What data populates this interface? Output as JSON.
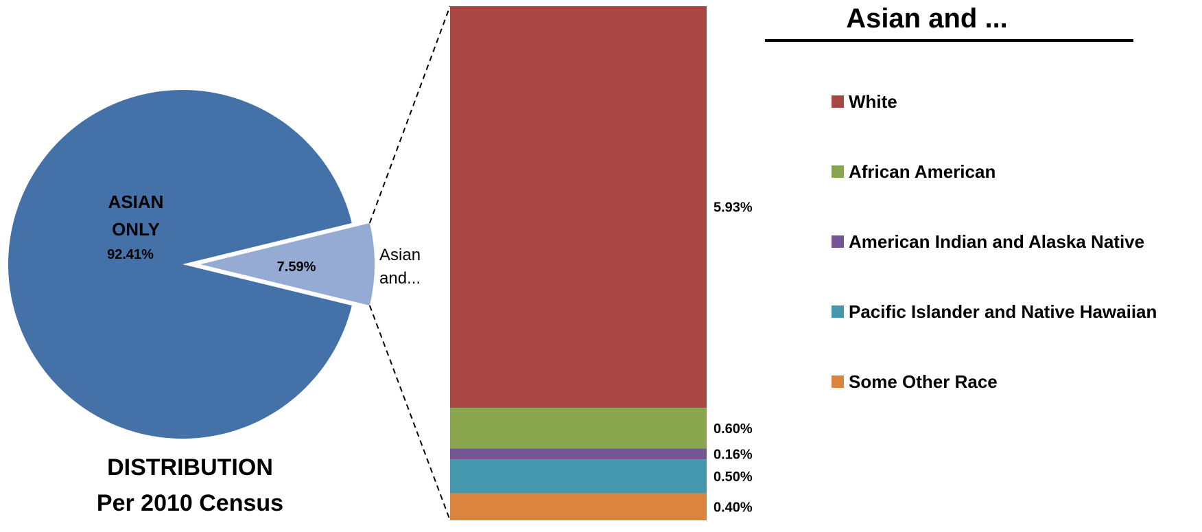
{
  "chart_data": {
    "type": "bar-of-pie",
    "pie": {
      "slices": [
        {
          "name": "ASIAN ONLY",
          "label_lines": [
            "ASIAN",
            "ONLY"
          ],
          "value": 92.41,
          "value_label": "92.41%",
          "color": "#4472a8"
        },
        {
          "name": "Asian and...",
          "label_lines": [
            "Asian",
            "and..."
          ],
          "value": 7.59,
          "value_label": "7.59%",
          "color": "#95abd4"
        }
      ],
      "title_lines": [
        "DISTRIBUTION",
        "Per 2010 Census"
      ]
    },
    "bar": {
      "segments": [
        {
          "name": "White",
          "value": 5.93,
          "value_label": "5.93%",
          "color": "#a94744"
        },
        {
          "name": "African American",
          "value": 0.6,
          "value_label": "0.60%",
          "color": "#89a54e"
        },
        {
          "name": "American Indian and Alaska Native",
          "value": 0.16,
          "value_label": "0.16%",
          "color": "#735693"
        },
        {
          "name": "Pacific Islander and Native Hawaiian",
          "value": 0.5,
          "value_label": "0.50%",
          "color": "#4497ac"
        },
        {
          "name": "Some Other Race",
          "value": 0.4,
          "value_label": "0.40%",
          "color": "#db843d"
        }
      ]
    },
    "legend": {
      "title": "Asian and ...",
      "position": "right"
    }
  }
}
